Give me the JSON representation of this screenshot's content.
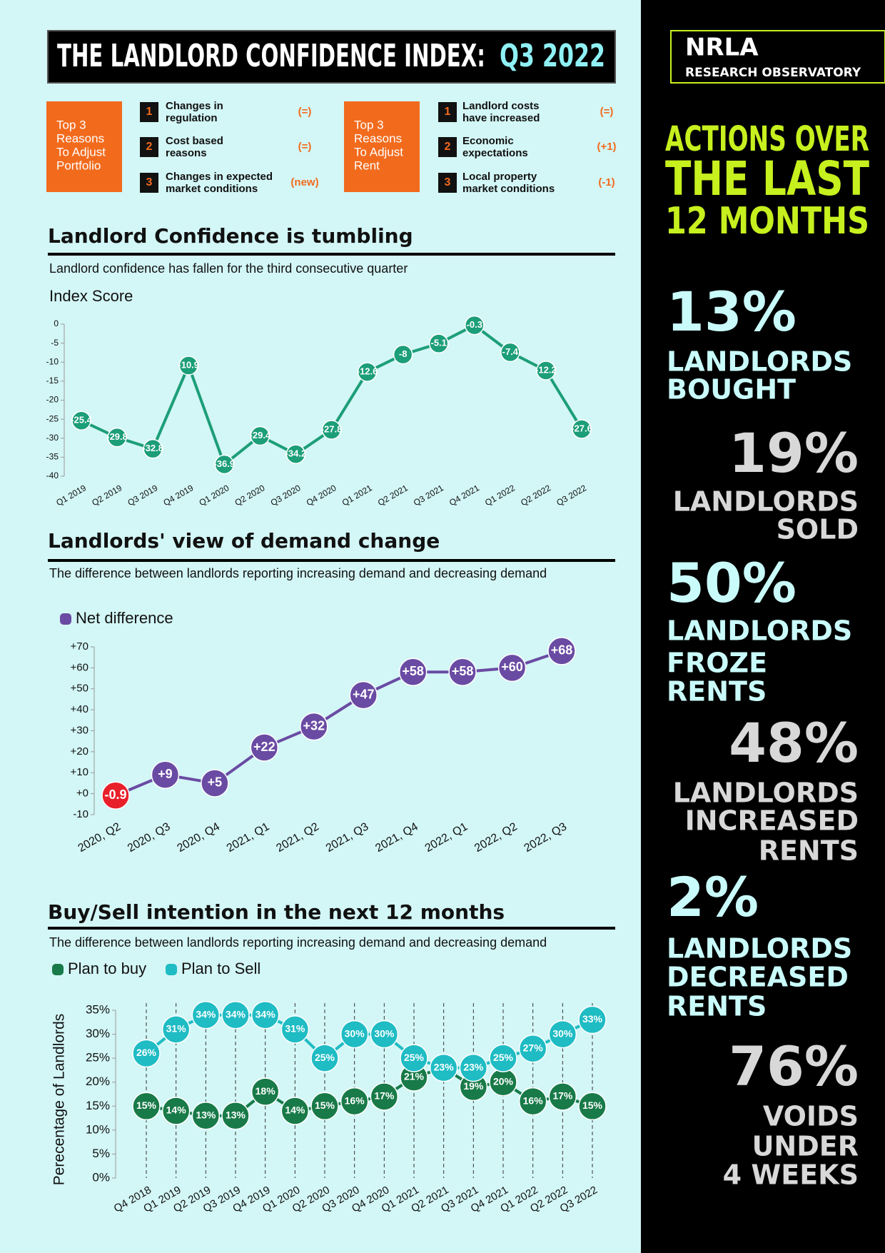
{
  "header": {
    "title": "THE LANDLORD CONFIDENCE INDEX:",
    "period": "Q3 2022"
  },
  "reasons": [
    {
      "label": [
        "Top 3",
        "Reasons",
        "To Adjust",
        "Portfolio"
      ],
      "items": [
        {
          "rank": 1,
          "text": [
            "Changes in",
            "regulation"
          ],
          "change": "(=)"
        },
        {
          "rank": 2,
          "text": [
            "Cost based",
            "reasons"
          ],
          "change": "(=)"
        },
        {
          "rank": 3,
          "text": [
            "Changes in expected",
            "market conditions"
          ],
          "change": "(new)"
        }
      ]
    },
    {
      "label": [
        "Top 3",
        "Reasons",
        "To Adjust",
        "Rent"
      ],
      "items": [
        {
          "rank": 1,
          "text": [
            "Landlord costs",
            "have increased"
          ],
          "change": "(=)"
        },
        {
          "rank": 2,
          "text": [
            "Economic",
            "expectations"
          ],
          "change": "(+1)"
        },
        {
          "rank": 3,
          "text": [
            "Local property",
            "market conditions"
          ],
          "change": "(-1)"
        }
      ]
    }
  ],
  "sidebar": {
    "logo": "NRLA",
    "logo_sub": "RESEARCH OBSERVATORY",
    "heading": [
      "ACTIONS OVER",
      "THE LAST",
      "12 MONTHS"
    ],
    "stats": [
      {
        "value": "13%",
        "label": [
          "LANDLORDS",
          "BOUGHT"
        ]
      },
      {
        "value": "19%",
        "label": [
          "LANDLORDS",
          "SOLD"
        ]
      },
      {
        "value": "50%",
        "label": [
          "LANDLORDS",
          "FROZE",
          "RENTS"
        ]
      },
      {
        "value": "48%",
        "label": [
          "LANDLORDS",
          "INCREASED",
          "RENTS"
        ]
      },
      {
        "value": "2%",
        "label": [
          "LANDLORDS",
          "DECREASED",
          "RENTS"
        ]
      },
      {
        "value": "76%",
        "label": [
          "VOIDS",
          "UNDER",
          "4 WEEKS"
        ]
      }
    ]
  },
  "chart_data": [
    {
      "type": "line",
      "title": "Landlord Confidence is tumbling",
      "subtitle": "Landlord confidence has fallen for the third consecutive quarter",
      "y_label": "Index Score",
      "categories": [
        "Q1 2019",
        "Q2 2019",
        "Q3 2019",
        "Q4 2019",
        "Q1 2020",
        "Q2 2020",
        "Q3 2020",
        "Q4 2020",
        "Q1 2021",
        "Q2 2021",
        "Q3 2021",
        "Q4 2021",
        "Q1 2022",
        "Q2 2022",
        "Q3 2022"
      ],
      "series": [
        {
          "color": "#1c9e78",
          "values": [
            -25.4,
            -29.8,
            -32.8,
            -10.9,
            -36.9,
            -29.4,
            -34.2,
            -27.8,
            -12.6,
            -8,
            -5.1,
            -0.3,
            -7.4,
            -12.2,
            -27.6
          ]
        }
      ],
      "ylim": [
        -40,
        0
      ],
      "yticks": [
        0,
        -5,
        -10,
        -15,
        -20,
        -25,
        -30,
        -35,
        -40
      ]
    },
    {
      "type": "line",
      "title": "Landlords' view of demand change",
      "subtitle": "The difference between landlords reporting increasing demand and decreasing demand",
      "categories": [
        "2020, Q2",
        "2020, Q3",
        "2020, Q4",
        "2021, Q1",
        "2021, Q2",
        "2021, Q3",
        "2021, Q4",
        "2022, Q1",
        "2022, Q2",
        "2022, Q3"
      ],
      "series": [
        {
          "name": "Net difference",
          "color": "#6a4ba3",
          "values": [
            -0.9,
            9,
            5,
            22,
            32,
            47,
            58,
            58,
            60,
            68
          ],
          "value_labels": [
            "-0.9",
            "+9",
            "+5",
            "+22",
            "+32",
            "+47",
            "+58",
            "+58",
            "+60",
            "+68"
          ],
          "point_colors": [
            "#e8202a",
            "#6a4ba3",
            "#6a4ba3",
            "#6a4ba3",
            "#6a4ba3",
            "#6a4ba3",
            "#6a4ba3",
            "#6a4ba3",
            "#6a4ba3",
            "#6a4ba3"
          ]
        }
      ],
      "ylim": [
        -10,
        70
      ],
      "yticks": [
        {
          "value": 70,
          "label": "+70"
        },
        {
          "value": 60,
          "label": "+60"
        },
        {
          "value": 50,
          "label": "+50"
        },
        {
          "value": 40,
          "label": "+40"
        },
        {
          "value": 30,
          "label": "+30"
        },
        {
          "value": 20,
          "label": "+20"
        },
        {
          "value": 10,
          "label": "+10"
        },
        {
          "value": 0,
          "label": "+0"
        },
        -10
      ]
    },
    {
      "type": "line",
      "title": "Buy/Sell intention in the next 12 months",
      "subtitle": "The difference between landlords reporting increasing demand and decreasing demand",
      "y_label": "Perecentage of Landlords",
      "xgrid": true,
      "categories": [
        "Q4 2018",
        "Q1 2019",
        "Q2 2019",
        "Q3 2019",
        "Q4 2019",
        "Q1 2020",
        "Q2 2020",
        "Q3 2020",
        "Q4 2020",
        "Q1 2021",
        "Q2 2021",
        "Q3 2021",
        "Q4 2021",
        "Q1 2022",
        "Q2 2022",
        "Q3 2022"
      ],
      "series": [
        {
          "name": "Plan to buy",
          "color": "#187a48",
          "values": [
            15,
            14,
            13,
            13,
            18,
            14,
            15,
            16,
            17,
            21,
            23,
            19,
            20,
            16,
            17,
            15
          ],
          "value_labels": [
            "15%",
            "14%",
            "13%",
            "13%",
            "18%",
            "14%",
            "15%",
            "16%",
            "17%",
            "21%",
            "23%",
            "19%",
            "20%",
            "16%",
            "17%",
            "15%"
          ]
        },
        {
          "name": "Plan to Sell",
          "color": "#1fbcc4",
          "values": [
            26,
            31,
            34,
            34,
            34,
            31,
            25,
            30,
            30,
            25,
            23,
            23,
            25,
            27,
            30,
            33
          ],
          "value_labels": [
            "26%",
            "31%",
            "34%",
            "34%",
            "34%",
            "31%",
            "25%",
            "30%",
            "30%",
            "25%",
            "23%",
            "23%",
            "25%",
            "27%",
            "30%",
            "33%"
          ]
        }
      ],
      "ylim": [
        0,
        35
      ],
      "yticks": [
        {
          "value": 35,
          "label": "35%"
        },
        {
          "value": 30,
          "label": "30%"
        },
        {
          "value": 25,
          "label": "25%"
        },
        {
          "value": 20,
          "label": "20%"
        },
        {
          "value": 15,
          "label": "15%"
        },
        {
          "value": 10,
          "label": "10%"
        },
        {
          "value": 5,
          "label": "5%"
        },
        {
          "value": 0,
          "label": "0%"
        }
      ]
    }
  ]
}
